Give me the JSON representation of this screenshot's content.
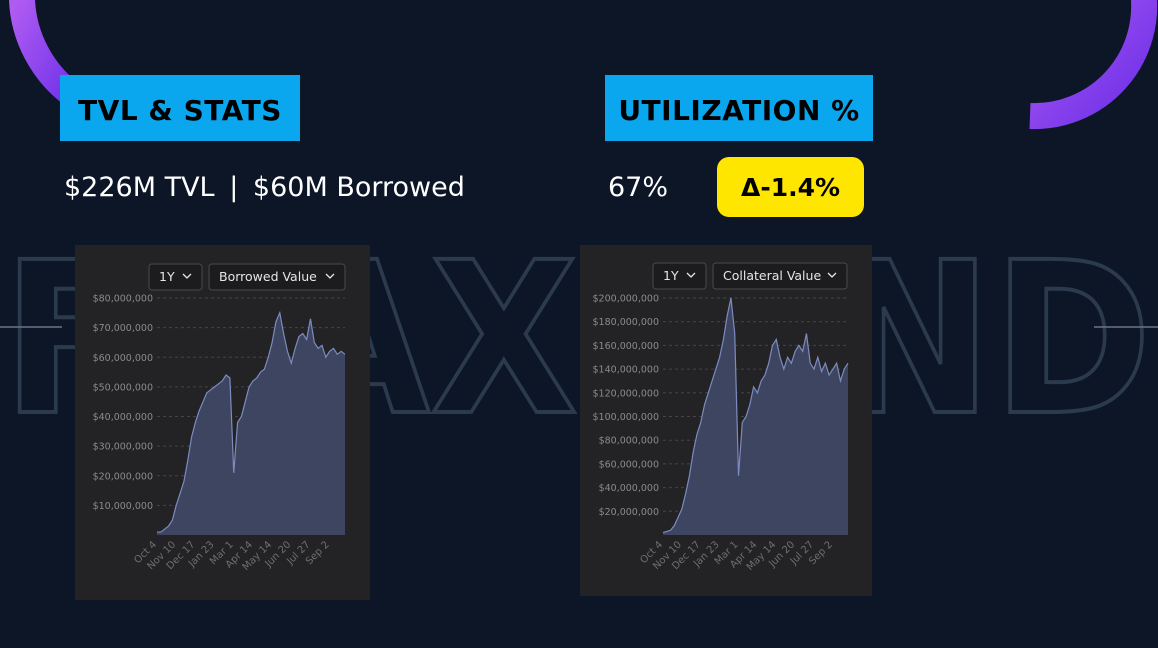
{
  "header": {
    "left_title": "TVL & STATS",
    "right_title": "UTILIZATION %",
    "tvl": "$226M TVL",
    "separator": "|",
    "borrowed": "$60M Borrowed",
    "utilization": "67%",
    "delta": "Δ-1.4%"
  },
  "watermark": "FRAXLEND",
  "chart_data": [
    {
      "type": "area",
      "range_label": "1Y",
      "selector_label": "Borrowed Value",
      "color": "#7d8cc0",
      "categories": [
        "Oct 4",
        null,
        null,
        null,
        null,
        "Nov 10",
        null,
        null,
        null,
        null,
        "Dec 17",
        null,
        null,
        null,
        null,
        "Jan 23",
        null,
        null,
        null,
        null,
        "Mar 1",
        null,
        null,
        null,
        null,
        "Apr 14",
        null,
        null,
        null,
        null,
        "May 14",
        null,
        null,
        null,
        null,
        "Jun 20",
        null,
        null,
        null,
        null,
        "Jul 27",
        null,
        null,
        null,
        null,
        "Sep 2",
        null,
        null,
        null,
        null
      ],
      "values": [
        1000000,
        1000000,
        2000000,
        3000000,
        5000000,
        10000000,
        14000000,
        18000000,
        25000000,
        33000000,
        38000000,
        42000000,
        45000000,
        48000000,
        49000000,
        50000000,
        51000000,
        52000000,
        54000000,
        53000000,
        21000000,
        38000000,
        40000000,
        45000000,
        50000000,
        52000000,
        53000000,
        55000000,
        56000000,
        60000000,
        65000000,
        72000000,
        75000000,
        68000000,
        62000000,
        58000000,
        63000000,
        67000000,
        68000000,
        66000000,
        73000000,
        65000000,
        63000000,
        64000000,
        60000000,
        62000000,
        63000000,
        61000000,
        62000000,
        61000000
      ],
      "ylim": [
        0,
        80000000
      ],
      "yticks": [
        {
          "value": 10000000,
          "label": "$10,000,000"
        },
        {
          "value": 20000000,
          "label": "$20,000,000"
        },
        {
          "value": 30000000,
          "label": "$30,000,000"
        },
        {
          "value": 40000000,
          "label": "$40,000,000"
        },
        {
          "value": 50000000,
          "label": "$50,000,000"
        },
        {
          "value": 60000000,
          "label": "$60,000,000"
        },
        {
          "value": 70000000,
          "label": "$70,000,000"
        },
        {
          "value": 80000000,
          "label": "$80,000,000"
        }
      ],
      "grid": true
    },
    {
      "type": "area",
      "range_label": "1Y",
      "selector_label": "Collateral Value",
      "color": "#7d8cc0",
      "categories": [
        "Oct 4",
        null,
        null,
        null,
        null,
        "Nov 10",
        null,
        null,
        null,
        null,
        "Dec 17",
        null,
        null,
        null,
        null,
        "Jan 23",
        null,
        null,
        null,
        null,
        "Mar 1",
        null,
        null,
        null,
        null,
        "Apr 14",
        null,
        null,
        null,
        null,
        "May 14",
        null,
        null,
        null,
        null,
        "Jun 20",
        null,
        null,
        null,
        null,
        "Jul 27",
        null,
        null,
        null,
        null,
        "Sep 2",
        null,
        null,
        null,
        null
      ],
      "values": [
        2000000,
        3000000,
        4000000,
        8000000,
        15000000,
        22000000,
        35000000,
        50000000,
        70000000,
        85000000,
        95000000,
        110000000,
        120000000,
        130000000,
        140000000,
        150000000,
        165000000,
        185000000,
        200000000,
        170000000,
        50000000,
        95000000,
        100000000,
        110000000,
        125000000,
        120000000,
        130000000,
        135000000,
        145000000,
        160000000,
        165000000,
        150000000,
        140000000,
        150000000,
        145000000,
        155000000,
        160000000,
        155000000,
        170000000,
        145000000,
        140000000,
        150000000,
        138000000,
        145000000,
        135000000,
        140000000,
        145000000,
        130000000,
        140000000,
        145000000
      ],
      "ylim": [
        0,
        200000000
      ],
      "yticks": [
        {
          "value": 20000000,
          "label": "$20,000,000"
        },
        {
          "value": 40000000,
          "label": "$40,000,000"
        },
        {
          "value": 60000000,
          "label": "$60,000,000"
        },
        {
          "value": 80000000,
          "label": "$80,000,000"
        },
        {
          "value": 100000000,
          "label": "$100,000,000"
        },
        {
          "value": 120000000,
          "label": "$120,000,000"
        },
        {
          "value": 140000000,
          "label": "$140,000,000"
        },
        {
          "value": 160000000,
          "label": "$160,000,000"
        },
        {
          "value": 180000000,
          "label": "$180,000,000"
        },
        {
          "value": 200000000,
          "label": "$200,000,000"
        }
      ],
      "grid": true
    }
  ]
}
